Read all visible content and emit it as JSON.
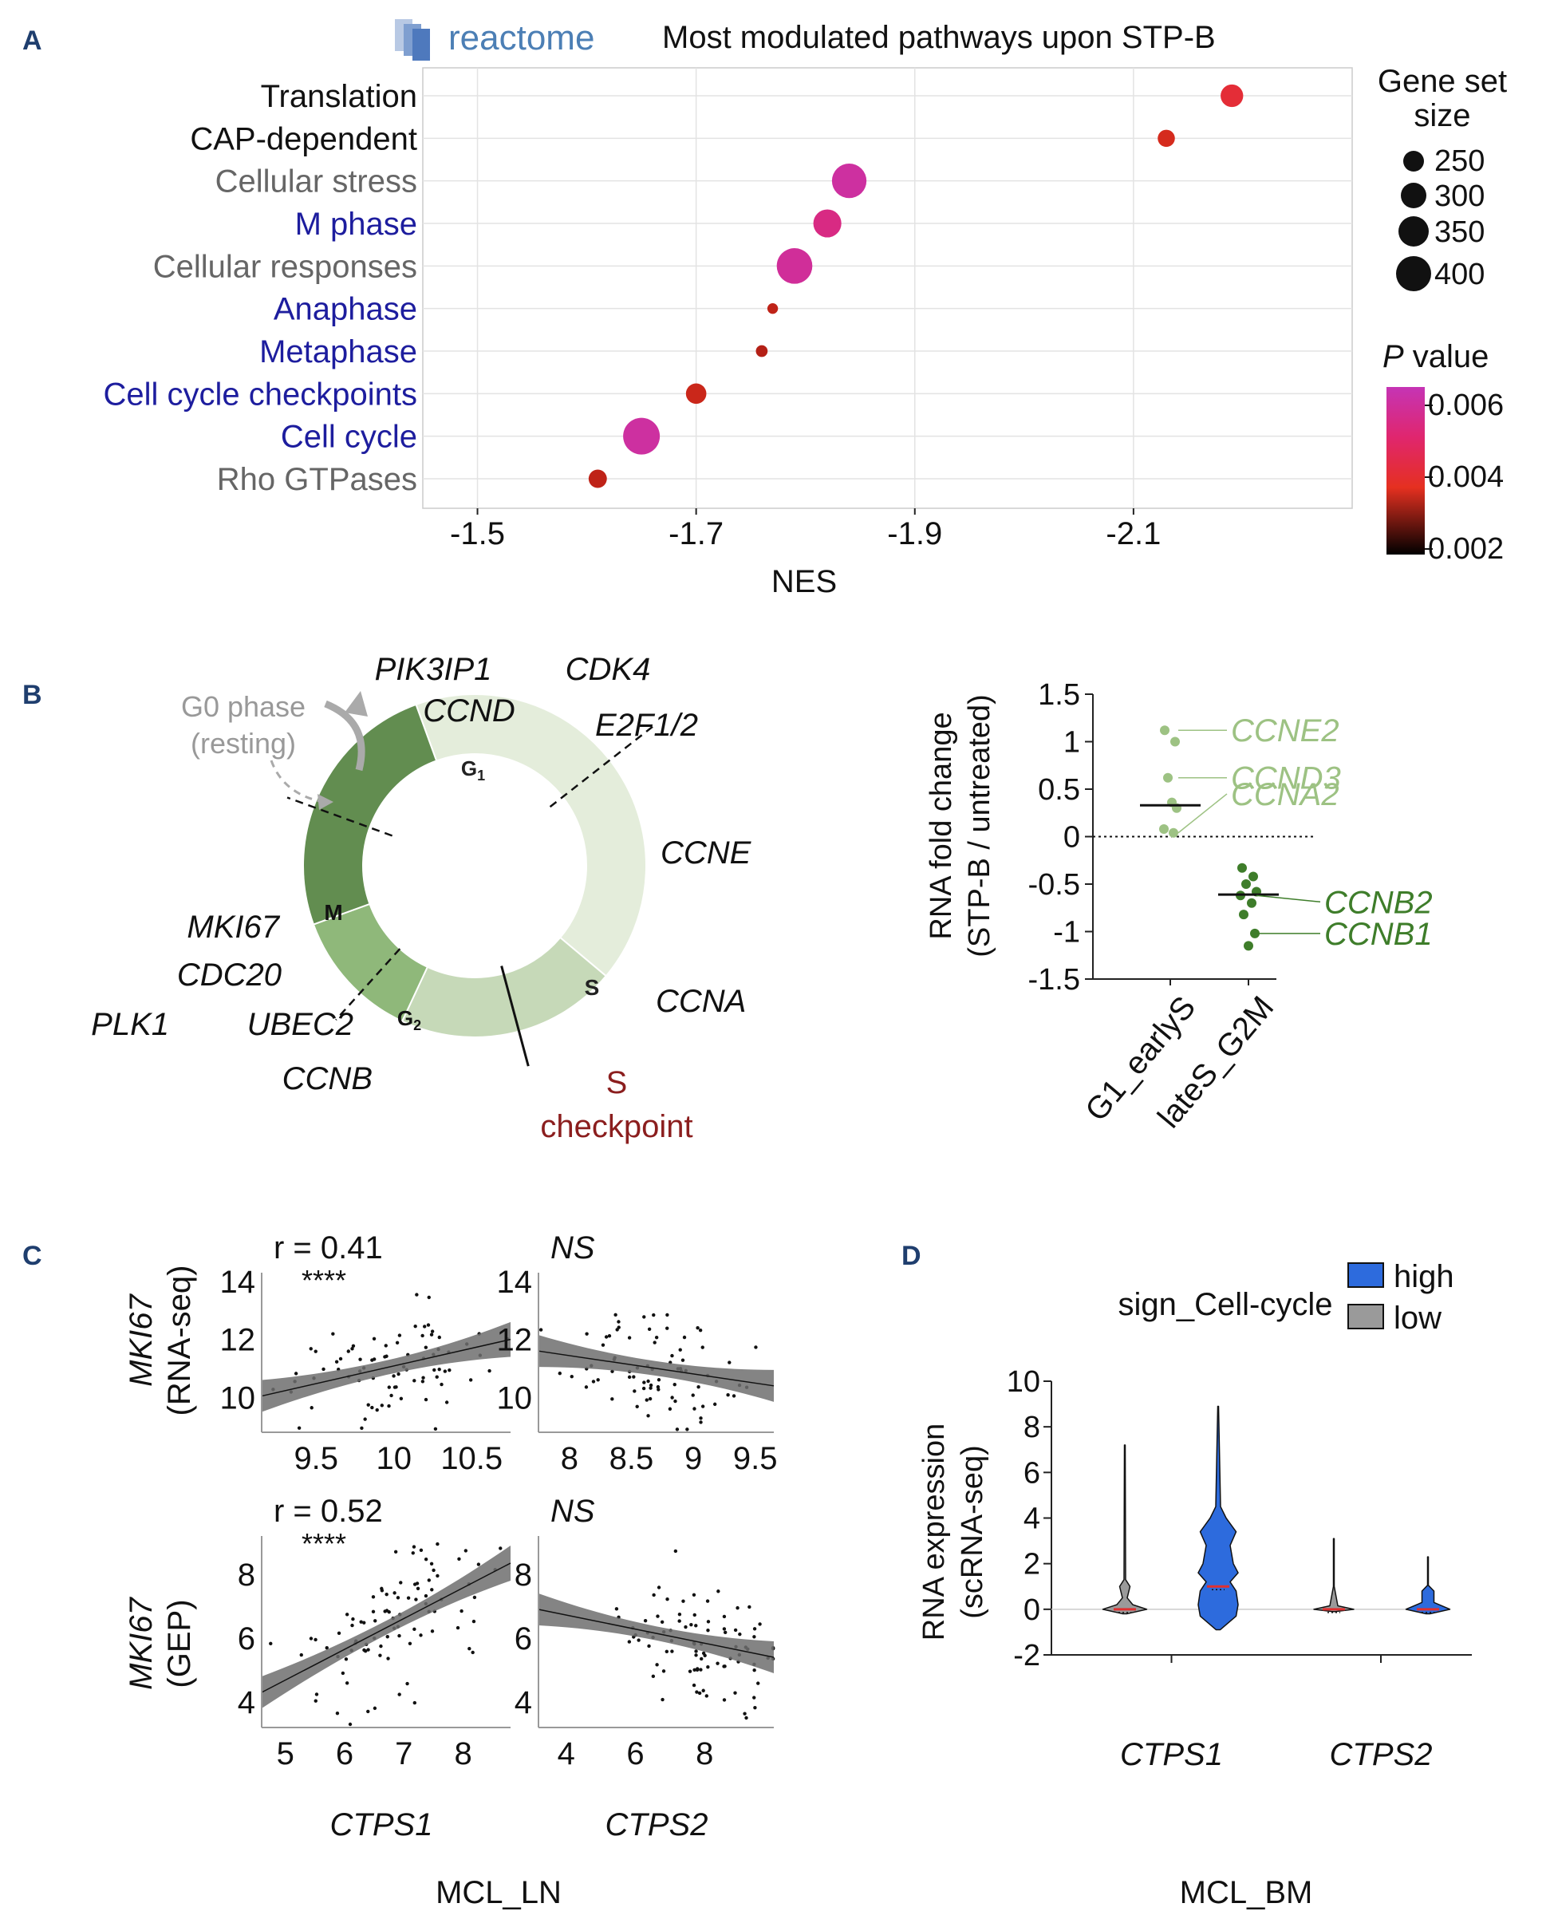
{
  "colors": {
    "accent_blue": "#1d1d9e",
    "gray_label": "#666666",
    "dark_red": "#8b1e1e",
    "light_green": "#9dc283",
    "dark_green": "#3e7d2a",
    "violin_high": "#2d6bdd",
    "violin_low": "#9a9a9a"
  },
  "panel_letters": {
    "a": "A",
    "b": "B",
    "c": "C",
    "d": "D"
  },
  "panelA": {
    "logo_text": "reactome",
    "title": "Most modulated pathways upon STP-B",
    "xlabel": "NES",
    "size_legend": {
      "title_line1": "Gene set",
      "title_line2": "size",
      "labels": [
        "250",
        "300",
        "350",
        "400"
      ]
    },
    "color_legend": {
      "title_italic": "P",
      "title_rest": " value",
      "labels": [
        "0.006",
        "0.004",
        "0.002"
      ]
    }
  },
  "panelB": {
    "cycle": {
      "g0_line1": "G0 phase",
      "g0_line2": "(resting)",
      "phase_g1": "G",
      "phase_g1_sub": "1",
      "phase_s": "S",
      "phase_m": "M",
      "phase_g2": "G",
      "phase_g2_sub": "2",
      "checkpoint_line1": "S",
      "checkpoint_line2": "checkpoint",
      "genes": {
        "pik3ip1": "PIK3IP1",
        "cdk4": "CDK4",
        "ccnd": "CCND",
        "e2f": "E2F1/2",
        "ccne": "CCNE",
        "ccna": "CCNA",
        "mki67": "MKI67",
        "cdc20": "CDC20",
        "plk1": "PLK1",
        "ubec2": "UBEC2",
        "ccnb": "CCNB"
      }
    }
  },
  "panelC": {
    "ylabel_top_gene": "MKI67",
    "ylabel_top_method": "(RNA-seq)",
    "ylabel_bottom_gene": "MKI67",
    "ylabel_bottom_method": "(GEP)",
    "xlabel_left": "CTPS1",
    "xlabel_right": "CTPS2",
    "dataset_label": "MCL_LN"
  },
  "panelD": {
    "legend_title": "sign_Cell-cycle",
    "legend_high": "high",
    "legend_low": "low",
    "dataset_label": "MCL_BM"
  },
  "chart_data": [
    {
      "id": "A",
      "type": "scatter",
      "title": "Most modulated pathways upon STP-B",
      "xlabel": "NES",
      "x_ticks": [
        -1.5,
        -1.7,
        -1.9,
        -2.1
      ],
      "xlim": [
        -1.45,
        -2.3
      ],
      "size_legend_title": "Gene set size",
      "color_legend_title": "P value",
      "points": [
        {
          "label": "Translation",
          "label_color": "#111111",
          "nes": -2.19,
          "size": 290,
          "p": 0.0048
        },
        {
          "label": "CAP-dependent",
          "label_color": "#111111",
          "nes": -2.13,
          "size": 240,
          "p": 0.0042
        },
        {
          "label": "Cellular stress",
          "label_color": "#666666",
          "nes": -1.84,
          "size": 400,
          "p": 0.0062
        },
        {
          "label": "M phase",
          "label_color": "#1d1d9e",
          "nes": -1.82,
          "size": 340,
          "p": 0.0058
        },
        {
          "label": "Cellular responses",
          "label_color": "#666666",
          "nes": -1.79,
          "size": 410,
          "p": 0.0061
        },
        {
          "label": "Anaphase",
          "label_color": "#1d1d9e",
          "nes": -1.77,
          "size": 180,
          "p": 0.0038
        },
        {
          "label": "Metaphase",
          "label_color": "#1d1d9e",
          "nes": -1.76,
          "size": 190,
          "p": 0.0036
        },
        {
          "label": "Cell cycle checkpoints",
          "label_color": "#1d1d9e",
          "nes": -1.7,
          "size": 270,
          "p": 0.004
        },
        {
          "label": "Cell cycle",
          "label_color": "#1d1d9e",
          "nes": -1.65,
          "size": 420,
          "p": 0.0062
        },
        {
          "label": "Rho GTPases",
          "label_color": "#666666",
          "nes": -1.61,
          "size": 250,
          "p": 0.0038
        }
      ]
    },
    {
      "id": "B-right",
      "type": "scatter",
      "ylabel_line1": "RNA fold change",
      "ylabel_line2": "(STP-B / untreated)",
      "y_ticks": [
        1.5,
        1,
        0.5,
        0,
        -0.5,
        -1,
        -1.5
      ],
      "ylim": [
        -1.5,
        1.5
      ],
      "categories": [
        "G1_earlyS",
        "lateS_G2M"
      ],
      "groups": [
        {
          "name": "G1_earlyS",
          "color": "#9dc283",
          "values": [
            1.12,
            1.0,
            0.62,
            0.36,
            0.3,
            0.08,
            0.04
          ],
          "median": 0.33,
          "annotations": [
            {
              "gene": "CCNE2",
              "y": 1.12
            },
            {
              "gene": "CCND3",
              "y": 0.62
            },
            {
              "gene": "CCNA2",
              "y": 0.04
            }
          ]
        },
        {
          "name": "lateS_G2M",
          "color": "#3e7d2a",
          "values": [
            -0.33,
            -0.42,
            -0.5,
            -0.58,
            -0.62,
            -0.7,
            -0.82,
            -1.02,
            -1.15
          ],
          "median": -0.61,
          "annotations": [
            {
              "gene": "CCNB2",
              "y": -0.62
            },
            {
              "gene": "CCNB1",
              "y": -1.02
            }
          ]
        }
      ]
    },
    {
      "id": "C",
      "type": "scatter",
      "subplots": [
        {
          "name": "rnaseq-ctps1",
          "annotation": "r = 0.41",
          "stars": "****",
          "xlim": [
            9.15,
            10.75
          ],
          "ylim": [
            8.8,
            14.3
          ],
          "x_ticks": [
            9.5,
            10,
            10.5
          ],
          "y_ticks": [
            10,
            12,
            14
          ],
          "fit": {
            "x0": 9.15,
            "y0": 10.05,
            "x1": 10.75,
            "y1": 12.0
          },
          "band": {
            "start": 0.55,
            "mid": 0.25,
            "end": 0.6
          },
          "n": 80,
          "x_mean": 9.95,
          "x_sd": 0.32,
          "resid_sd": 1.0
        },
        {
          "name": "rnaseq-ctps2",
          "annotation": "NS",
          "stars": "",
          "xlim": [
            7.75,
            9.65
          ],
          "ylim": [
            8.8,
            14.3
          ],
          "x_ticks": [
            8,
            8.5,
            9,
            9.5
          ],
          "y_ticks": [
            10,
            12,
            14
          ],
          "fit": {
            "x0": 7.75,
            "y0": 11.6,
            "x1": 9.65,
            "y1": 10.4
          },
          "band": {
            "start": 0.55,
            "mid": 0.25,
            "end": 0.55
          },
          "n": 80,
          "x_mean": 8.7,
          "x_sd": 0.4,
          "resid_sd": 1.0
        },
        {
          "name": "gep-ctps1",
          "annotation": "r = 0.52",
          "stars": "****",
          "xlim": [
            4.6,
            8.8
          ],
          "ylim": [
            3.2,
            9.2
          ],
          "x_ticks": [
            5,
            6,
            7,
            8
          ],
          "y_ticks": [
            4,
            6,
            8
          ],
          "fit": {
            "x0": 4.6,
            "y0": 4.3,
            "x1": 8.8,
            "y1": 8.35
          },
          "band": {
            "start": 0.5,
            "mid": 0.22,
            "end": 0.55
          },
          "n": 90,
          "x_mean": 6.8,
          "x_sd": 0.75,
          "resid_sd": 1.1
        },
        {
          "name": "gep-ctps2",
          "annotation": "NS",
          "stars": "",
          "xlim": [
            3.2,
            10.0
          ],
          "ylim": [
            3.2,
            9.2
          ],
          "x_ticks": [
            4,
            6,
            8
          ],
          "y_ticks": [
            4,
            6,
            8
          ],
          "fit": {
            "x0": 3.2,
            "y0": 6.9,
            "x1": 10.0,
            "y1": 5.4
          },
          "band": {
            "start": 0.5,
            "mid": 0.22,
            "end": 0.5
          },
          "n": 90,
          "x_mean": 8.0,
          "x_sd": 1.2,
          "resid_sd": 1.1
        }
      ]
    },
    {
      "id": "D",
      "type": "violin",
      "ylabel_line1": "RNA expression",
      "ylabel_line2": "(scRNA-seq)",
      "y_ticks": [
        10,
        8,
        6,
        4,
        2,
        0,
        -2
      ],
      "ylim": [
        -2,
        10
      ],
      "categories": [
        "CTPS1",
        "CTPS2"
      ],
      "legend_title": "sign_Cell-cycle",
      "violins": [
        {
          "gene": "CTPS1",
          "group": "low",
          "max": 7.2,
          "median": 0,
          "fill": "#9a9a9a",
          "profile": [
            [
              -0.2,
              0.05
            ],
            [
              0,
              0.55
            ],
            [
              0.2,
              0.2
            ],
            [
              0.5,
              0.06
            ],
            [
              1.0,
              0.13
            ],
            [
              1.3,
              0.02
            ],
            [
              7.2,
              0.01
            ]
          ]
        },
        {
          "gene": "CTPS1",
          "group": "high",
          "max": 8.9,
          "median": 1.0,
          "fill": "#2d6bdd",
          "profile": [
            [
              -0.9,
              0.05
            ],
            [
              -0.3,
              0.45
            ],
            [
              0.2,
              0.5
            ],
            [
              0.8,
              0.45
            ],
            [
              1.2,
              0.3
            ],
            [
              1.6,
              0.5
            ],
            [
              2.0,
              0.38
            ],
            [
              2.8,
              0.3
            ],
            [
              3.4,
              0.45
            ],
            [
              4.0,
              0.2
            ],
            [
              4.5,
              0.06
            ],
            [
              8.9,
              0.01
            ]
          ]
        },
        {
          "gene": "CTPS2",
          "group": "low",
          "max": 3.1,
          "median": 0,
          "fill": "#9a9a9a",
          "profile": [
            [
              -0.1,
              0.05
            ],
            [
              0,
              0.5
            ],
            [
              0.15,
              0.1
            ],
            [
              1.0,
              0.01
            ],
            [
              3.1,
              0.01
            ]
          ]
        },
        {
          "gene": "CTPS2",
          "group": "high",
          "max": 2.3,
          "median": 0,
          "fill": "#2d6bdd",
          "profile": [
            [
              -0.2,
              0.05
            ],
            [
              0,
              0.55
            ],
            [
              0.3,
              0.15
            ],
            [
              0.8,
              0.15
            ],
            [
              1.05,
              0.01
            ],
            [
              2.3,
              0.01
            ]
          ]
        }
      ]
    }
  ]
}
